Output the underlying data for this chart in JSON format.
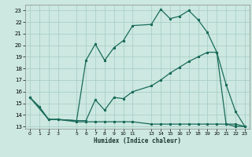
{
  "xlabel": "Humidex (Indice chaleur)",
  "bg_color": "#cce8e0",
  "grid_color": "#aacfc8",
  "line_color": "#1a6b5a",
  "xlim": [
    -0.5,
    23.5
  ],
  "ylim": [
    12.8,
    23.5
  ],
  "yticks": [
    13,
    14,
    15,
    16,
    17,
    18,
    19,
    20,
    21,
    22,
    23
  ],
  "xticks": [
    0,
    1,
    2,
    3,
    5,
    6,
    7,
    8,
    9,
    10,
    11,
    13,
    14,
    15,
    16,
    17,
    18,
    19,
    20,
    21,
    22,
    23
  ],
  "curve1_x": [
    0,
    1,
    2,
    3,
    5,
    6,
    7,
    8,
    9,
    10,
    11,
    13,
    14,
    15,
    16,
    17,
    18,
    19,
    20,
    21,
    22,
    23
  ],
  "curve1_y": [
    15.5,
    14.7,
    13.6,
    13.6,
    13.5,
    13.5,
    15.3,
    14.4,
    15.5,
    15.4,
    16.0,
    16.5,
    17.0,
    17.6,
    18.1,
    18.6,
    19.0,
    19.4,
    19.4,
    13.2,
    13.0,
    13.0
  ],
  "curve2_x": [
    0,
    1,
    2,
    3,
    5,
    6,
    7,
    8,
    9,
    10,
    11,
    13,
    14,
    15,
    16,
    17,
    18,
    19,
    20,
    21,
    22,
    23
  ],
  "curve2_y": [
    15.5,
    14.7,
    13.6,
    13.6,
    13.5,
    18.7,
    20.1,
    18.7,
    19.8,
    20.4,
    21.7,
    21.8,
    23.1,
    22.3,
    22.5,
    23.0,
    22.2,
    21.1,
    19.4,
    16.6,
    14.3,
    13.0
  ],
  "curve3_x": [
    0,
    2,
    3,
    5,
    6,
    7,
    8,
    9,
    10,
    11,
    13,
    14,
    15,
    16,
    17,
    18,
    19,
    20,
    21,
    22,
    23
  ],
  "curve3_y": [
    15.5,
    13.6,
    13.6,
    13.4,
    13.4,
    13.4,
    13.4,
    13.4,
    13.4,
    13.4,
    13.2,
    13.2,
    13.2,
    13.2,
    13.2,
    13.2,
    13.2,
    13.2,
    13.2,
    13.2,
    13.0
  ]
}
